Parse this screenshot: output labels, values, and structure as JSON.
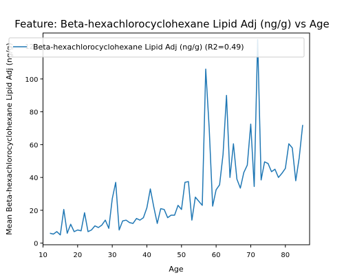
{
  "chart_data": {
    "type": "line",
    "title": "Feature: Beta-hexachlorocyclohexane Lipid Adj (ng/g) vs Age",
    "xlabel": "Age",
    "ylabel": "Mean Beta-hexachlorocyclohexane Lipid Adj (ng/g)",
    "xlim": [
      10,
      87
    ],
    "ylim": [
      -1,
      128
    ],
    "xticks": [
      10,
      20,
      30,
      40,
      50,
      60,
      70,
      80
    ],
    "yticks": [
      0,
      20,
      40,
      60,
      80,
      100,
      120
    ],
    "grid": false,
    "legend_position": "top",
    "series": [
      {
        "name": "Beta-hexachlorocyclohexane Lipid Adj (ng/g) (R2=0.49)",
        "color": "#1f77b4",
        "x": [
          12,
          13,
          14,
          15,
          16,
          17,
          18,
          19,
          20,
          21,
          22,
          23,
          24,
          25,
          26,
          27,
          28,
          29,
          30,
          31,
          32,
          33,
          34,
          35,
          36,
          37,
          38,
          39,
          40,
          41,
          42,
          43,
          44,
          45,
          46,
          47,
          48,
          49,
          50,
          51,
          52,
          53,
          54,
          55,
          56,
          57,
          58,
          59,
          60,
          61,
          62,
          63,
          64,
          65,
          66,
          67,
          68,
          69,
          70,
          71,
          72,
          73,
          74,
          75,
          76,
          77,
          78,
          79,
          80,
          81,
          82,
          83,
          84,
          85
        ],
        "y": [
          6,
          5.5,
          7,
          5,
          20.5,
          6,
          11.5,
          7,
          8,
          7.5,
          18.5,
          7,
          8,
          10.5,
          9.5,
          11,
          14,
          9,
          27,
          37,
          8,
          13.5,
          14,
          12.5,
          12,
          15,
          14,
          15.5,
          21.5,
          33,
          22,
          12,
          21,
          20.5,
          15.5,
          17,
          17,
          23,
          20.5,
          37,
          37.5,
          14,
          28,
          25.5,
          23,
          106,
          70,
          22.5,
          32.5,
          35.5,
          54,
          90,
          40,
          60.5,
          39,
          33.5,
          43,
          47.5,
          72.5,
          34.5,
          124,
          38.5,
          49.5,
          48.5,
          43.5,
          45,
          40,
          42.5,
          45.5,
          60.5,
          58,
          38,
          52,
          72
        ]
      }
    ]
  }
}
